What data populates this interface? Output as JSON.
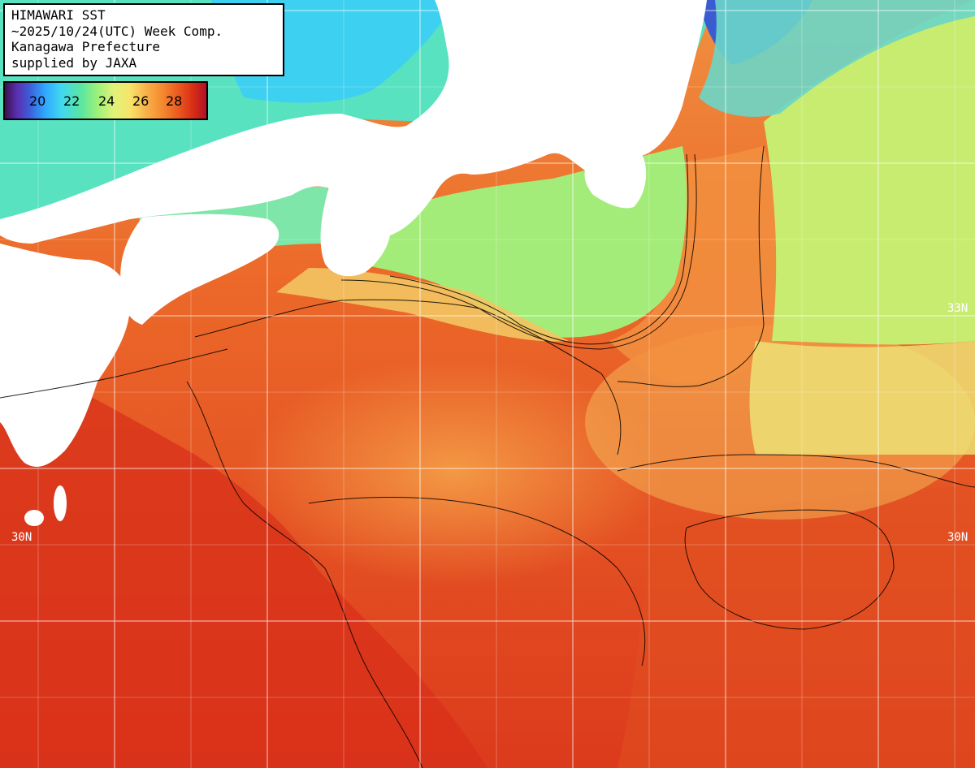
{
  "title_lines": [
    "HIMAWARI SST",
    "~2025/10/24(UTC) Week Comp.",
    "Kanagawa Prefecture",
    "supplied by JAXA"
  ],
  "legend": {
    "ticks": [
      "20",
      "22",
      "24",
      "26",
      "28"
    ]
  },
  "grid_labels": {
    "lat_33_left": "",
    "lat_33_right": "33N",
    "lat_30_left": "30N",
    "lat_30_right": "30N"
  },
  "colors": {
    "warm": "#e24a1c",
    "hot": "#d8301a",
    "mid": "#f4a04a",
    "cool": "#9ef07a",
    "cold": "#3fd2f0",
    "land": "#ffffff"
  }
}
